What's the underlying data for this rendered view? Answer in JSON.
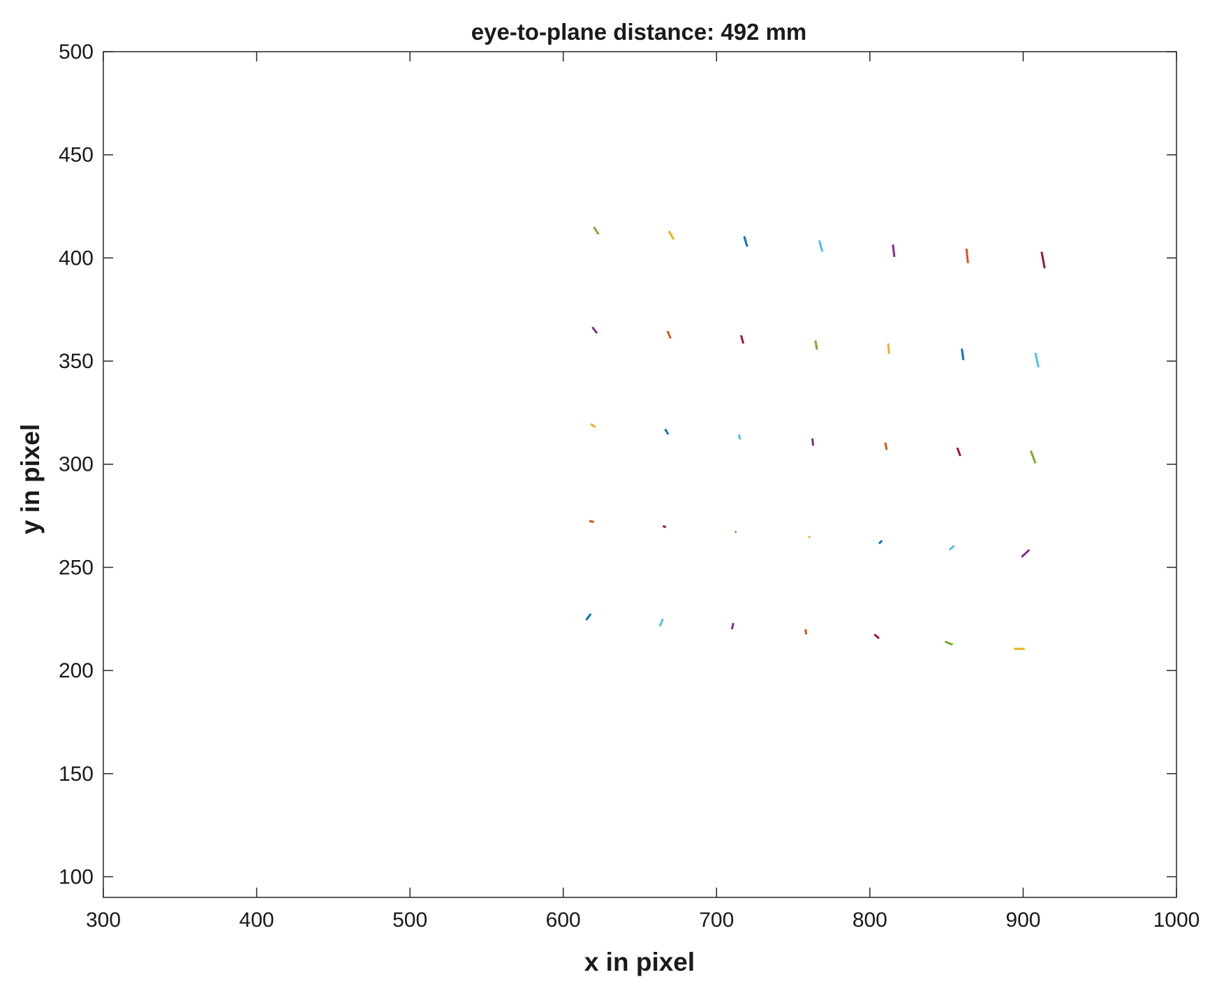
{
  "chart_data": {
    "type": "line",
    "title": "eye-to-plane distance: 492 mm",
    "xlabel": "x in pixel",
    "ylabel": "y in pixel",
    "xlim": [
      300,
      1000
    ],
    "ylim": [
      90,
      500
    ],
    "xticks": [
      300,
      400,
      500,
      600,
      700,
      800,
      900,
      1000
    ],
    "yticks": [
      100,
      150,
      200,
      250,
      300,
      350,
      400,
      450,
      500
    ],
    "xtick_labels": [
      "300",
      "400",
      "500",
      "600",
      "700",
      "800",
      "900",
      "1000"
    ],
    "ytick_labels": [
      "100",
      "150",
      "200",
      "250",
      "300",
      "350",
      "400",
      "450",
      "500"
    ],
    "grid": false,
    "box": true,
    "series": [
      {
        "color": "#77AC30",
        "x": [
          620,
          623
        ],
        "y": [
          415,
          411.5
        ]
      },
      {
        "color": "#EDB120",
        "x": [
          669,
          672
        ],
        "y": [
          413,
          409
        ]
      },
      {
        "color": "#0072BD",
        "x": [
          718,
          720
        ],
        "y": [
          410.5,
          405.5
        ]
      },
      {
        "color": "#4DBEEE",
        "x": [
          767,
          769
        ],
        "y": [
          408.5,
          403
        ]
      },
      {
        "color": "#7E2F8E",
        "x": [
          815,
          816
        ],
        "y": [
          406.5,
          400.5
        ]
      },
      {
        "color": "#D95319",
        "x": [
          863,
          864
        ],
        "y": [
          404.5,
          397.5
        ]
      },
      {
        "color": "#A2142F",
        "x": [
          912,
          914
        ],
        "y": [
          403,
          395
        ]
      },
      {
        "color": "#7E2F8E",
        "x": [
          619,
          622
        ],
        "y": [
          366.5,
          363.5
        ]
      },
      {
        "color": "#D95319",
        "x": [
          668,
          670
        ],
        "y": [
          364.5,
          361
        ]
      },
      {
        "color": "#A2142F",
        "x": [
          716,
          717.5
        ],
        "y": [
          362.5,
          358.5
        ]
      },
      {
        "color": "#77AC30",
        "x": [
          764.5,
          765.5
        ],
        "y": [
          360,
          355.5
        ]
      },
      {
        "color": "#EDB120",
        "x": [
          812,
          812.5
        ],
        "y": [
          358.5,
          353.5
        ]
      },
      {
        "color": "#0072BD",
        "x": [
          860,
          861
        ],
        "y": [
          356,
          350.5
        ]
      },
      {
        "color": "#4DBEEE",
        "x": [
          908,
          910
        ],
        "y": [
          354,
          347
        ]
      },
      {
        "color": "#EDB120",
        "x": [
          618,
          621
        ],
        "y": [
          319.5,
          318
        ]
      },
      {
        "color": "#0072BD",
        "x": [
          666.5,
          668.5
        ],
        "y": [
          317,
          314.5
        ]
      },
      {
        "color": "#4DBEEE",
        "x": [
          714.5,
          715.5
        ],
        "y": [
          314.5,
          312
        ]
      },
      {
        "color": "#7E2F8E",
        "x": [
          762.5,
          763
        ],
        "y": [
          312.5,
          309
        ]
      },
      {
        "color": "#D95319",
        "x": [
          810,
          811
        ],
        "y": [
          310.5,
          307
        ]
      },
      {
        "color": "#A2142F",
        "x": [
          857,
          859
        ],
        "y": [
          308,
          304
        ]
      },
      {
        "color": "#77AC30",
        "x": [
          905,
          908
        ],
        "y": [
          306.5,
          300.5
        ]
      },
      {
        "color": "#D95319",
        "x": [
          617,
          620
        ],
        "y": [
          272.5,
          272
        ]
      },
      {
        "color": "#A2142F",
        "x": [
          665,
          667
        ],
        "y": [
          270,
          269.5
        ]
      },
      {
        "color": "#77AC30",
        "x": [
          712,
          713
        ],
        "y": [
          267.5,
          267
        ]
      },
      {
        "color": "#EDB120",
        "x": [
          760,
          761
        ],
        "y": [
          265,
          264.5
        ]
      },
      {
        "color": "#0072BD",
        "x": [
          806,
          808
        ],
        "y": [
          261.5,
          263
        ]
      },
      {
        "color": "#4DBEEE",
        "x": [
          852,
          855
        ],
        "y": [
          258.5,
          260.5
        ]
      },
      {
        "color": "#7E2F8E",
        "x": [
          899,
          904
        ],
        "y": [
          255,
          258.5
        ]
      },
      {
        "color": "#0072BD",
        "x": [
          615,
          618
        ],
        "y": [
          224.5,
          227.5
        ]
      },
      {
        "color": "#4DBEEE",
        "x": [
          663,
          665
        ],
        "y": [
          221.5,
          225
        ]
      },
      {
        "color": "#7E2F8E",
        "x": [
          710,
          711
        ],
        "y": [
          220,
          223
        ]
      },
      {
        "color": "#D95319",
        "x": [
          758,
          758.5
        ],
        "y": [
          220,
          217.5
        ]
      },
      {
        "color": "#A2142F",
        "x": [
          803,
          806
        ],
        "y": [
          217.5,
          215.5
        ]
      },
      {
        "color": "#77AC30",
        "x": [
          849,
          854
        ],
        "y": [
          214,
          212.5
        ]
      },
      {
        "color": "#EDB120",
        "x": [
          894,
          901
        ],
        "y": [
          210.5,
          210.5
        ]
      }
    ]
  }
}
